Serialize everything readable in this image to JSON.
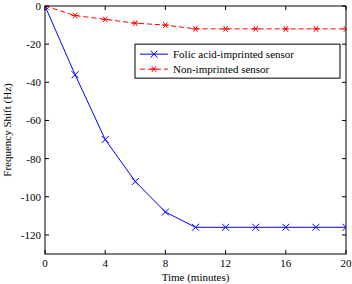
{
  "chart_data": {
    "type": "line",
    "x_label": "Time (minutes)",
    "y_label": "Frequency Shift (Hz)",
    "x": [
      0,
      2,
      4,
      6,
      8,
      10,
      12,
      14,
      16,
      18,
      20
    ],
    "series": [
      {
        "name": "Folic acid-imprinted sensor",
        "color": "#0000ff",
        "marker": "x",
        "line_style": "solid",
        "values": [
          0,
          -36,
          -70,
          -92,
          -108,
          -116,
          -116,
          -116,
          -116,
          -116,
          -116
        ]
      },
      {
        "name": "Non-imprinted sensor",
        "color": "#ff0000",
        "marker": "asterisk",
        "line_style": "dashed",
        "values": [
          0,
          -5,
          -7,
          -9,
          -10,
          -12,
          -12,
          -12,
          -12,
          -12,
          -12
        ]
      }
    ],
    "xlim": [
      0,
      20
    ],
    "xticks": [
      0,
      4,
      8,
      12,
      16,
      20
    ],
    "ylim": [
      -130,
      0
    ],
    "yticks": [
      0,
      -20,
      -40,
      -60,
      -80,
      -100,
      -120
    ],
    "grid": false,
    "legend": "upper right"
  }
}
